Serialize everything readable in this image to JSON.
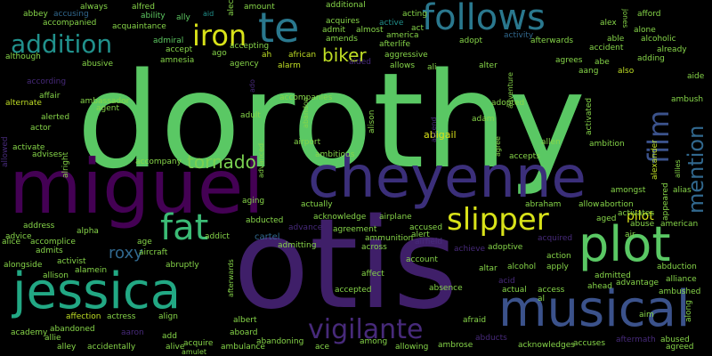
{
  "palette": {
    "background": "#000000",
    "green": "#5ac864",
    "teal": "#2a788e",
    "purple": "#3f1f69",
    "violet": "#472a7a",
    "blue": "#3b528b",
    "seagreen": "#22a884",
    "lime": "#7ad151",
    "yellow": "#d8e219"
  },
  "words": [
    {
      "text": "dorothy",
      "color": "#5ac864"
    },
    {
      "text": "otis",
      "color": "#3f1f69"
    },
    {
      "text": "miguel",
      "color": "#440154"
    },
    {
      "text": "cheyenne",
      "color": "#3b2f7a"
    },
    {
      "text": "musical",
      "color": "#3b528b"
    },
    {
      "text": "jessica",
      "color": "#22a884"
    },
    {
      "text": "follows",
      "color": "#2a788e"
    },
    {
      "text": "plot",
      "color": "#5ac864"
    },
    {
      "text": "te",
      "color": "#2a788e"
    },
    {
      "text": "addition",
      "color": "#21918c"
    },
    {
      "text": "slipper",
      "color": "#d8e219"
    },
    {
      "text": "iron",
      "color": "#d8e219"
    },
    {
      "text": "fat",
      "color": "#3bbb75"
    },
    {
      "text": "vigilante",
      "color": "#472a7a"
    },
    {
      "text": "film",
      "color": "#3b528b"
    },
    {
      "text": "mention",
      "color": "#31688e"
    },
    {
      "text": "tornado",
      "color": "#7ad151"
    },
    {
      "text": "biker",
      "color": "#c0df25"
    },
    {
      "text": "roxy",
      "color": "#31688e"
    },
    {
      "text": "abigail",
      "color": "#d8e219"
    },
    {
      "text": "pilot",
      "color": "#d8e219"
    },
    {
      "text": "abbey",
      "color": "#86d549"
    },
    {
      "text": "accompanied",
      "color": "#86d549"
    },
    {
      "text": "accusing",
      "color": "#31688e"
    },
    {
      "text": "always",
      "color": "#86d549"
    },
    {
      "text": "alfred",
      "color": "#86d549"
    },
    {
      "text": "ability",
      "color": "#5ec962"
    },
    {
      "text": "ally",
      "color": "#5ec962"
    },
    {
      "text": "aid",
      "color": "#21918c"
    },
    {
      "text": "alec",
      "color": "#86d549"
    },
    {
      "text": "amount",
      "color": "#86d549"
    },
    {
      "text": "additional",
      "color": "#86d549"
    },
    {
      "text": "acquires",
      "color": "#86d549"
    },
    {
      "text": "acting",
      "color": "#86d549"
    },
    {
      "text": "alex",
      "color": "#86d549"
    },
    {
      "text": "jones",
      "color": "#86d549"
    },
    {
      "text": "afford",
      "color": "#86d549"
    },
    {
      "text": "alone",
      "color": "#86d549"
    },
    {
      "text": "alcoholic",
      "color": "#86d549"
    },
    {
      "text": "already",
      "color": "#86d549"
    },
    {
      "text": "adding",
      "color": "#86d549"
    },
    {
      "text": "aide",
      "color": "#86d549"
    },
    {
      "text": "acquaintance",
      "color": "#86d549"
    },
    {
      "text": "admiral",
      "color": "#5ec962"
    },
    {
      "text": "accept",
      "color": "#86d549"
    },
    {
      "text": "amnesia",
      "color": "#86d549"
    },
    {
      "text": "ago",
      "color": "#86d549"
    },
    {
      "text": "accepting",
      "color": "#86d549"
    },
    {
      "text": "ah",
      "color": "#c0df25"
    },
    {
      "text": "african",
      "color": "#c0df25"
    },
    {
      "text": "alarm",
      "color": "#c0df25"
    },
    {
      "text": "aided",
      "color": "#472a7a"
    },
    {
      "text": "admit",
      "color": "#86d549"
    },
    {
      "text": "amends",
      "color": "#86d549"
    },
    {
      "text": "almost",
      "color": "#86d549"
    },
    {
      "text": "act",
      "color": "#86d549"
    },
    {
      "text": "active",
      "color": "#21918c"
    },
    {
      "text": "afterlife",
      "color": "#86d549"
    },
    {
      "text": "america",
      "color": "#86d549"
    },
    {
      "text": "aggressive",
      "color": "#86d549"
    },
    {
      "text": "allows",
      "color": "#86d549"
    },
    {
      "text": "ali",
      "color": "#86d549"
    },
    {
      "text": "adopt",
      "color": "#86d549"
    },
    {
      "text": "activity",
      "color": "#31688e"
    },
    {
      "text": "afterwards",
      "color": "#86d549"
    },
    {
      "text": "able",
      "color": "#86d549"
    },
    {
      "text": "accident",
      "color": "#86d549"
    },
    {
      "text": "agrees",
      "color": "#86d549"
    },
    {
      "text": "abe",
      "color": "#86d549"
    },
    {
      "text": "aang",
      "color": "#86d549"
    },
    {
      "text": "also",
      "color": "#c0df25"
    },
    {
      "text": "alter",
      "color": "#86d549"
    },
    {
      "text": "although",
      "color": "#86d549"
    },
    {
      "text": "abusive",
      "color": "#86d549"
    },
    {
      "text": "agency",
      "color": "#86d549"
    },
    {
      "text": "according",
      "color": "#472a7a"
    },
    {
      "text": "affair",
      "color": "#86d549"
    },
    {
      "text": "ambassador",
      "color": "#86d549"
    },
    {
      "text": "alternate",
      "color": "#c0df25"
    },
    {
      "text": "agent",
      "color": "#86d549"
    },
    {
      "text": "adult",
      "color": "#86d549"
    },
    {
      "text": "ado",
      "color": "#472a7a"
    },
    {
      "text": "accompanies",
      "color": "#86d549"
    },
    {
      "text": "abandon",
      "color": "#86d549"
    },
    {
      "text": "alison",
      "color": "#86d549"
    },
    {
      "text": "adopted",
      "color": "#86d549"
    },
    {
      "text": "adventure",
      "color": "#86d549"
    },
    {
      "text": "activated",
      "color": "#86d549"
    },
    {
      "text": "ambush",
      "color": "#86d549"
    },
    {
      "text": "alerted",
      "color": "#86d549"
    },
    {
      "text": "actor",
      "color": "#86d549"
    },
    {
      "text": "adam",
      "color": "#86d549"
    },
    {
      "text": "airport",
      "color": "#86d549"
    },
    {
      "text": "ascend",
      "color": "#472a7a"
    },
    {
      "text": "agree",
      "color": "#86d549"
    },
    {
      "text": "allen",
      "color": "#86d549"
    },
    {
      "text": "ambition",
      "color": "#86d549"
    },
    {
      "text": "alexander",
      "color": "#c0df25"
    },
    {
      "text": "allowed",
      "color": "#472a7a"
    },
    {
      "text": "activate",
      "color": "#86d549"
    },
    {
      "text": "advises",
      "color": "#86d549"
    },
    {
      "text": "ambitious",
      "color": "#86d549"
    },
    {
      "text": "accepts",
      "color": "#86d549"
    },
    {
      "text": "alright",
      "color": "#86d549"
    },
    {
      "text": "accompany",
      "color": "#86d549"
    },
    {
      "text": "advanced",
      "color": "#86d549"
    },
    {
      "text": "amongst",
      "color": "#86d549"
    },
    {
      "text": "appeared",
      "color": "#86d549"
    },
    {
      "text": "alias",
      "color": "#86d549"
    },
    {
      "text": "allies",
      "color": "#86d549"
    },
    {
      "text": "abraham",
      "color": "#86d549"
    },
    {
      "text": "allow",
      "color": "#86d549"
    },
    {
      "text": "abortion",
      "color": "#86d549"
    },
    {
      "text": "actually",
      "color": "#86d549"
    },
    {
      "text": "activates",
      "color": "#86d549"
    },
    {
      "text": "aging",
      "color": "#86d549"
    },
    {
      "text": "acknowledge",
      "color": "#86d549"
    },
    {
      "text": "airplane",
      "color": "#86d549"
    },
    {
      "text": "aged",
      "color": "#86d549"
    },
    {
      "text": "address",
      "color": "#86d549"
    },
    {
      "text": "abducted",
      "color": "#86d549"
    },
    {
      "text": "abuse",
      "color": "#86d549"
    },
    {
      "text": "american",
      "color": "#86d549"
    },
    {
      "text": "alpha",
      "color": "#86d549"
    },
    {
      "text": "advice",
      "color": "#86d549"
    },
    {
      "text": "alice",
      "color": "#86d549"
    },
    {
      "text": "accomplice",
      "color": "#86d549"
    },
    {
      "text": "addict",
      "color": "#86d549"
    },
    {
      "text": "cartel",
      "color": "#31688e"
    },
    {
      "text": "advance",
      "color": "#472a7a"
    },
    {
      "text": "agreement",
      "color": "#86d549"
    },
    {
      "text": "ammunition",
      "color": "#86d549"
    },
    {
      "text": "accused",
      "color": "#86d549"
    },
    {
      "text": "alert",
      "color": "#86d549"
    },
    {
      "text": "acquired",
      "color": "#472a7a"
    },
    {
      "text": "air",
      "color": "#86d549"
    },
    {
      "text": "admits",
      "color": "#86d549"
    },
    {
      "text": "age",
      "color": "#86d549"
    },
    {
      "text": "admitting",
      "color": "#86d549"
    },
    {
      "text": "across",
      "color": "#86d549"
    },
    {
      "text": "airfield",
      "color": "#472a7a"
    },
    {
      "text": "achieve",
      "color": "#472a7a"
    },
    {
      "text": "adoptive",
      "color": "#86d549"
    },
    {
      "text": "activist",
      "color": "#86d549"
    },
    {
      "text": "aircraft",
      "color": "#86d549"
    },
    {
      "text": "account",
      "color": "#86d549"
    },
    {
      "text": "action",
      "color": "#86d549"
    },
    {
      "text": "abduction",
      "color": "#86d549"
    },
    {
      "text": "alamein",
      "color": "#86d549"
    },
    {
      "text": "alongside",
      "color": "#86d549"
    },
    {
      "text": "abruptly",
      "color": "#86d549"
    },
    {
      "text": "afterwards",
      "color": "#86d549"
    },
    {
      "text": "altar",
      "color": "#86d549"
    },
    {
      "text": "alcohol",
      "color": "#86d549"
    },
    {
      "text": "apply",
      "color": "#86d549"
    },
    {
      "text": "allison",
      "color": "#86d549"
    },
    {
      "text": "affect",
      "color": "#86d549"
    },
    {
      "text": "acid",
      "color": "#472a7a"
    },
    {
      "text": "admitted",
      "color": "#86d549"
    },
    {
      "text": "alliance",
      "color": "#86d549"
    },
    {
      "text": "advantage",
      "color": "#86d549"
    },
    {
      "text": "accepted",
      "color": "#86d549"
    },
    {
      "text": "absence",
      "color": "#86d549"
    },
    {
      "text": "actual",
      "color": "#86d549"
    },
    {
      "text": "access",
      "color": "#86d549"
    },
    {
      "text": "ahead",
      "color": "#86d549"
    },
    {
      "text": "ambushed",
      "color": "#86d549"
    },
    {
      "text": "affection",
      "color": "#c0df25"
    },
    {
      "text": "actress",
      "color": "#86d549"
    },
    {
      "text": "align",
      "color": "#86d549"
    },
    {
      "text": "albert",
      "color": "#86d549"
    },
    {
      "text": "al",
      "color": "#86d549"
    },
    {
      "text": "aim",
      "color": "#86d549"
    },
    {
      "text": "along",
      "color": "#86d549"
    },
    {
      "text": "abandoned",
      "color": "#86d549"
    },
    {
      "text": "academy",
      "color": "#86d549"
    },
    {
      "text": "allie",
      "color": "#86d549"
    },
    {
      "text": "aaron",
      "color": "#472a7a"
    },
    {
      "text": "add",
      "color": "#86d549"
    },
    {
      "text": "aboard",
      "color": "#86d549"
    },
    {
      "text": "afraid",
      "color": "#86d549"
    },
    {
      "text": "acquire",
      "color": "#86d549"
    },
    {
      "text": "abandoning",
      "color": "#86d549"
    },
    {
      "text": "among",
      "color": "#86d549"
    },
    {
      "text": "ambrose",
      "color": "#86d549"
    },
    {
      "text": "abducts",
      "color": "#472a7a"
    },
    {
      "text": "accuses",
      "color": "#86d549"
    },
    {
      "text": "aftermath",
      "color": "#472a7a"
    },
    {
      "text": "abused",
      "color": "#86d549"
    },
    {
      "text": "alley",
      "color": "#86d549"
    },
    {
      "text": "accidentally",
      "color": "#86d549"
    },
    {
      "text": "alive",
      "color": "#86d549"
    },
    {
      "text": "amulet",
      "color": "#86d549"
    },
    {
      "text": "ambulance",
      "color": "#86d549"
    },
    {
      "text": "ace",
      "color": "#86d549"
    },
    {
      "text": "allowing",
      "color": "#86d549"
    },
    {
      "text": "acknowledges",
      "color": "#86d549"
    },
    {
      "text": "agreed",
      "color": "#86d549"
    }
  ]
}
